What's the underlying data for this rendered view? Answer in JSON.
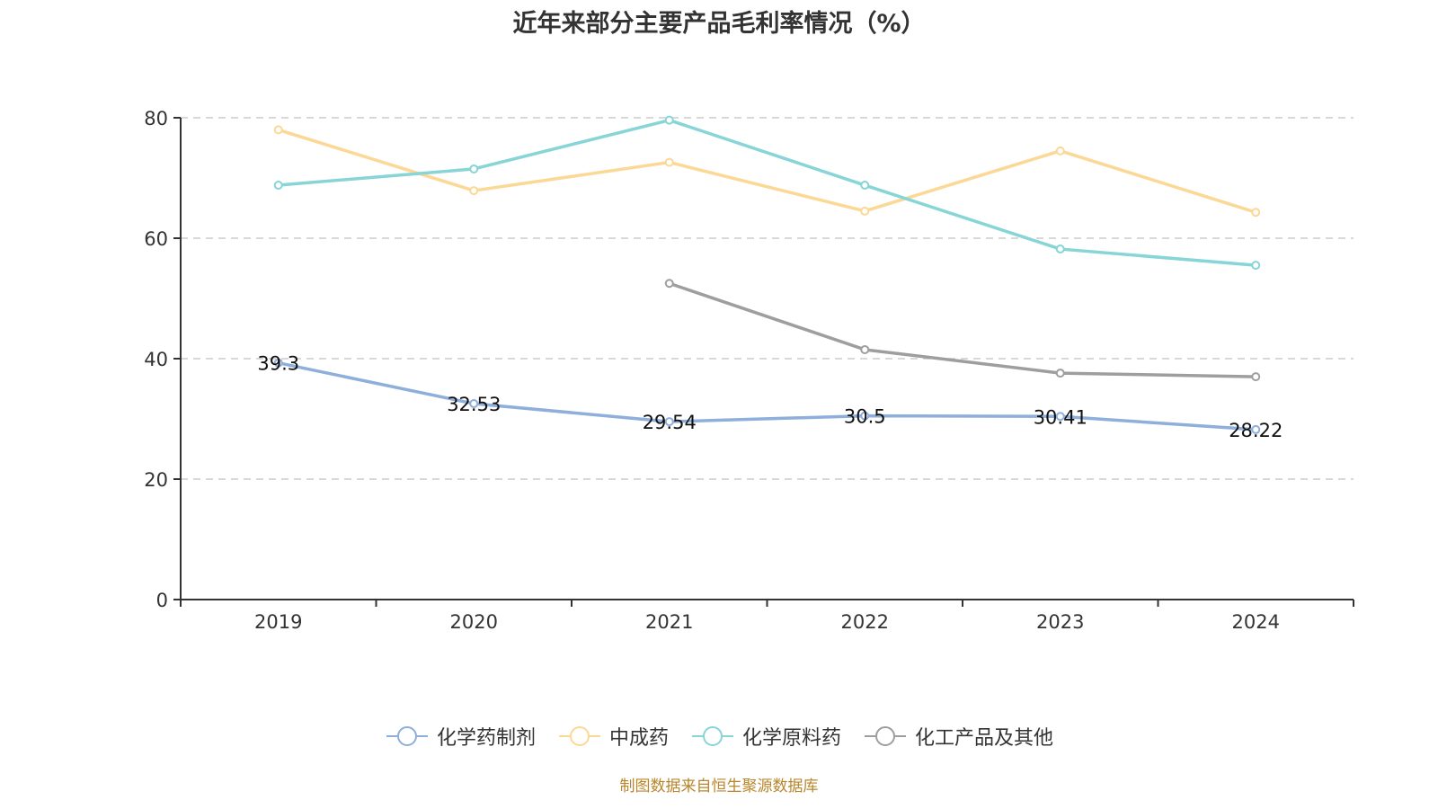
{
  "chart_data": {
    "type": "line",
    "title": "近年来部分主要产品毛利率情况（%）",
    "xlabel": "",
    "ylabel": "",
    "categories": [
      "2019",
      "2020",
      "2021",
      "2022",
      "2023",
      "2024"
    ],
    "ylim": [
      0,
      80
    ],
    "yticks": [
      0,
      20,
      40,
      60,
      80
    ],
    "grid": true,
    "legend_position": "bottom",
    "series": [
      {
        "name": "化学药制剂",
        "color": "#8eaedb",
        "values": [
          39.3,
          32.53,
          29.54,
          30.5,
          30.41,
          28.22
        ],
        "show_labels": true
      },
      {
        "name": "中成药",
        "color": "#fcd896",
        "values": [
          78.0,
          67.9,
          72.6,
          64.5,
          74.5,
          64.3
        ],
        "show_labels": false
      },
      {
        "name": "化学原料药",
        "color": "#87d5d7",
        "values": [
          68.8,
          71.5,
          79.6,
          68.8,
          58.2,
          55.5
        ],
        "show_labels": false
      },
      {
        "name": "化工产品及其他",
        "color": "#9e9e9e",
        "values": [
          null,
          null,
          52.5,
          41.5,
          37.6,
          37.0
        ],
        "show_labels": false
      }
    ]
  },
  "source_note": "制图数据来自恒生聚源数据库"
}
